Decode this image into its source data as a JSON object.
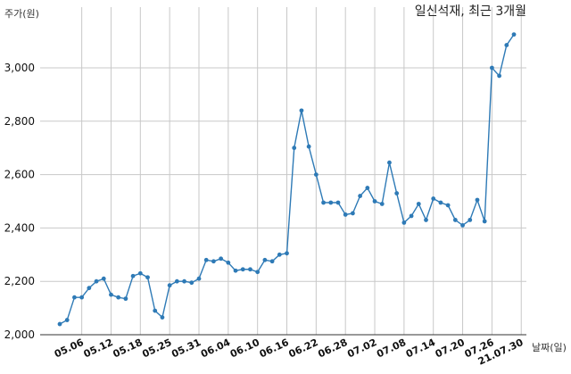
{
  "chart_data": {
    "type": "line",
    "title": "일신석재, 최근 3개월",
    "ylabel": "주가(원)",
    "xlabel": "날짜(일)",
    "ylim": [
      2000,
      3150
    ],
    "yticks": [
      2000,
      2200,
      2400,
      2600,
      2800,
      3000
    ],
    "ytick_labels": [
      "2,000",
      "2,200",
      "2,400",
      "2,600",
      "2,800",
      "3,000"
    ],
    "xtick_labels": [
      "05.06",
      "05.12",
      "05.18",
      "05.25",
      "05.31",
      "06.04",
      "06.10",
      "06.16",
      "06.22",
      "06.28",
      "07.02",
      "07.08",
      "07.14",
      "07.20",
      "07.26",
      "21.07.30"
    ],
    "xtick_index": [
      3,
      7,
      11,
      15,
      19,
      23,
      27,
      31,
      35,
      39,
      43,
      47,
      51,
      55,
      59,
      63
    ],
    "grid": true,
    "series": [
      {
        "values": [
          2040,
          2055,
          2140,
          2140,
          2175,
          2200,
          2210,
          2150,
          2140,
          2135,
          2220,
          2230,
          2215,
          2090,
          2065,
          2185,
          2200,
          2200,
          2195,
          2210,
          2280,
          2275,
          2285,
          2270,
          2240,
          2245,
          2245,
          2235,
          2280,
          2275,
          2300,
          2305,
          2700,
          2840,
          2705,
          2600,
          2495,
          2495,
          2495,
          2450,
          2455,
          2520,
          2550,
          2500,
          2490,
          2645,
          2530,
          2420,
          2445,
          2490,
          2430,
          2510,
          2495,
          2485,
          2430,
          2410,
          2430,
          2505,
          2425,
          3000,
          2970,
          3085,
          3125
        ]
      }
    ]
  }
}
